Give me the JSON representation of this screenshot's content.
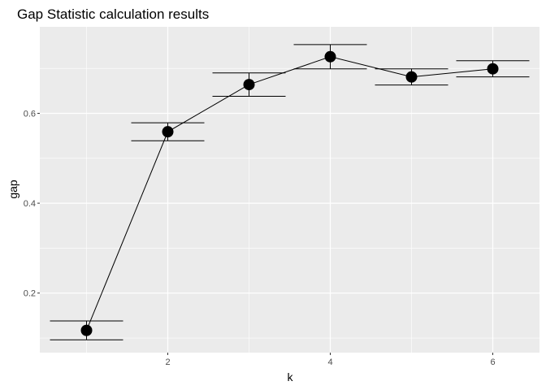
{
  "chart_data": {
    "type": "scatter",
    "title": "Gap Statistic calculation results",
    "xlabel": "k",
    "ylabel": "gap",
    "x": [
      1,
      2,
      3,
      4,
      5,
      6
    ],
    "y": [
      0.117,
      0.559,
      0.664,
      0.726,
      0.681,
      0.699
    ],
    "ymin": [
      0.096,
      0.539,
      0.638,
      0.699,
      0.663,
      0.681
    ],
    "ymax": [
      0.138,
      0.579,
      0.69,
      0.753,
      0.699,
      0.717
    ],
    "xlim": [
      0.425,
      6.575
    ],
    "ylim": [
      0.0675,
      0.7925
    ],
    "x_ticks": [
      2,
      4,
      6
    ],
    "x_tick_labels": [
      "2",
      "4",
      "6"
    ],
    "y_ticks": [
      0.2,
      0.4,
      0.6
    ],
    "y_tick_labels": [
      "0.2",
      "0.4",
      "0.6"
    ],
    "grid": true,
    "legend": "none",
    "colors": {
      "panel_background": "#ebebeb",
      "grid_line": "#ffffff",
      "series": "#000000"
    }
  }
}
